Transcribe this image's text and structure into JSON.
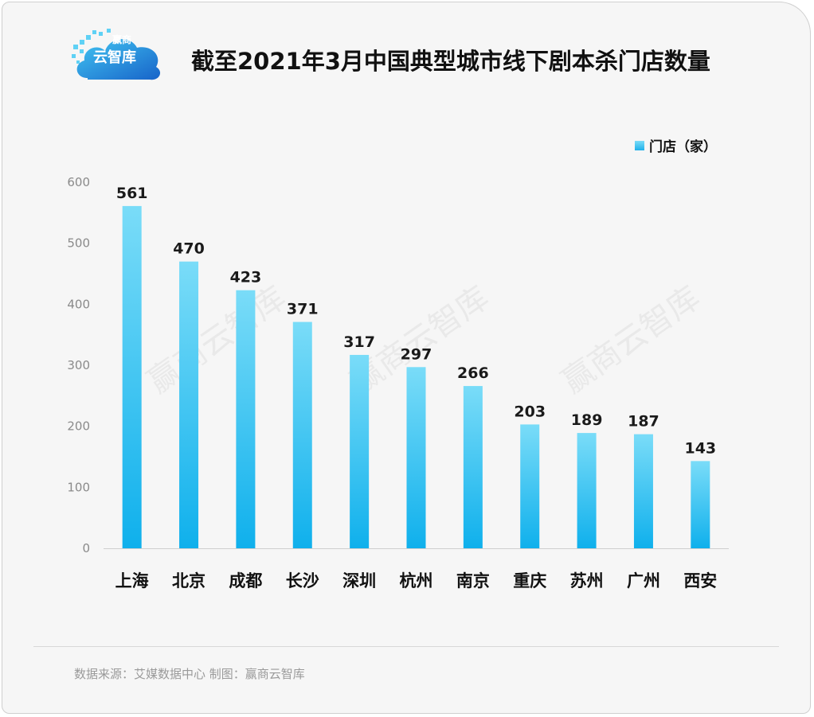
{
  "header": {
    "title": "截至2021年3月中国典型城市线下剧本杀门店数量",
    "logo_text": "云智库",
    "logo_text_top": "赢商",
    "watermark": "赢商云智库"
  },
  "footer": {
    "source": "数据来源：艾媒数据中心  制图：赢商云智库"
  },
  "colors": {
    "bar_top": "#7adcf8",
    "bar_bottom": "#0fb0ec",
    "background": "#f6f6f6"
  },
  "chart_data": {
    "type": "bar",
    "categories": [
      "上海",
      "北京",
      "成都",
      "长沙",
      "深圳",
      "杭州",
      "南京",
      "重庆",
      "苏州",
      "广州",
      "西安"
    ],
    "series": [
      {
        "name": "门店（家）",
        "values": [
          561,
          470,
          423,
          371,
          317,
          297,
          266,
          203,
          189,
          187,
          143
        ]
      }
    ],
    "title": "截至2021年3月中国典型城市线下剧本杀门店数量",
    "xlabel": "",
    "ylabel": "",
    "ylim": [
      0,
      600
    ],
    "yticks": [
      0,
      100,
      200,
      300,
      400,
      500,
      600
    ],
    "grid": false,
    "legend_position": "top-right",
    "data_labels": true
  }
}
